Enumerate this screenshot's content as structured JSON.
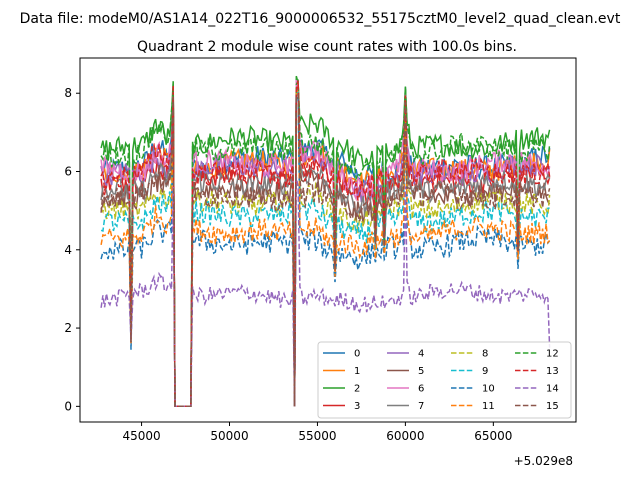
{
  "chart_data": {
    "type": "line",
    "suptitle": "Data file: modeM0/AS1A14_022T16_9000006532_55175cztM0_level2_quad_clean.evt",
    "title": "Quadrant 2 module wise count rates with 100.0s bins.",
    "xlabel": "",
    "ylabel": "",
    "x_offset_label": "+5.029e8",
    "xlim": [
      41500,
      69700
    ],
    "ylim": [
      -0.4,
      8.9
    ],
    "x_start": 42700,
    "x_end": 68200,
    "x_step": 100,
    "x_ticks": [
      45000,
      50000,
      55000,
      60000,
      65000
    ],
    "x_tick_labels": [
      "45000",
      "50000",
      "55000",
      "60000",
      "65000"
    ],
    "y_ticks": [
      0,
      2,
      4,
      6,
      8
    ],
    "y_tick_labels": [
      "0",
      "2",
      "4",
      "6",
      "8"
    ],
    "gaps": [
      [
        46900,
        47800
      ],
      [
        53650,
        53750
      ]
    ],
    "dips": [
      [
        44400,
        1.6
      ],
      [
        56000,
        3.3
      ],
      [
        58300,
        3.9
      ],
      [
        58800,
        3.9
      ],
      [
        66400,
        3.7
      ]
    ],
    "spikes": [
      [
        46800,
        8.2
      ],
      [
        53850,
        8.3
      ],
      [
        60000,
        8.1
      ]
    ],
    "legend": {
      "placement": "lower-right",
      "columns": 4
    },
    "series": [
      {
        "name": "0",
        "color": "#1f77b4",
        "dash": "solid",
        "base": 6.2
      },
      {
        "name": "1",
        "color": "#ff7f0e",
        "dash": "solid",
        "base": 6.1
      },
      {
        "name": "2",
        "color": "#2ca02c",
        "dash": "solid",
        "base": 6.7
      },
      {
        "name": "3",
        "color": "#d62728",
        "dash": "solid",
        "base": 5.8
      },
      {
        "name": "4",
        "color": "#9467bd",
        "dash": "solid",
        "base": 6.0
      },
      {
        "name": "5",
        "color": "#8c564b",
        "dash": "solid",
        "base": 5.4
      },
      {
        "name": "6",
        "color": "#e377c2",
        "dash": "solid",
        "base": 6.1
      },
      {
        "name": "7",
        "color": "#7f7f7f",
        "dash": "solid",
        "base": 5.6
      },
      {
        "name": "8",
        "color": "#bcbd22",
        "dash": "dashed",
        "base": 5.1
      },
      {
        "name": "9",
        "color": "#17becf",
        "dash": "dashed",
        "base": 4.8
      },
      {
        "name": "10",
        "color": "#1f77b4",
        "dash": "dashed",
        "base": 4.1
      },
      {
        "name": "11",
        "color": "#ff7f0e",
        "dash": "dashed",
        "base": 4.4
      },
      {
        "name": "12",
        "color": "#2ca02c",
        "dash": "dashed",
        "base": 6.5
      },
      {
        "name": "13",
        "color": "#d62728",
        "dash": "dashed",
        "base": 5.9
      },
      {
        "name": "14",
        "color": "#9467bd",
        "dash": "dashed",
        "base": 2.8
      },
      {
        "name": "15",
        "color": "#8c564b",
        "dash": "dashed",
        "base": 5.3
      }
    ]
  }
}
